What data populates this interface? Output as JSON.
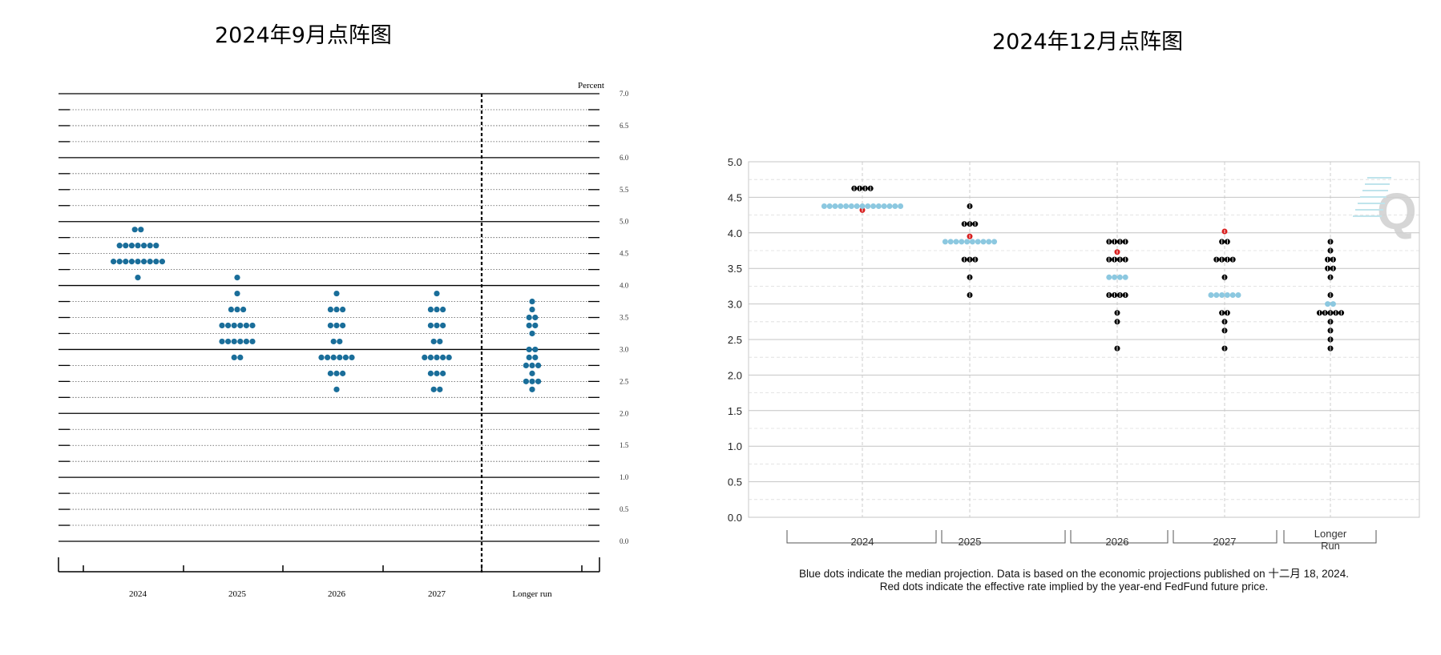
{
  "sep_title": "2024年9月点阵图",
  "dec_title": "2024年12月点阵图",
  "notes": {
    "line1": "Blue dots indicate the median projection. Data is based on the economic projections published on 十二月 18, 2024.",
    "line2": "Red dots indicate the effective rate implied by the year-end FedFund future price."
  },
  "colors": {
    "sep_dot": "#1a6e9a",
    "dec_dot": "#000000",
    "dec_median": "#8cc8e0",
    "dec_future": "#d81e1e"
  },
  "chart_data": [
    {
      "type": "scatter",
      "name": "September 2024 dot plot",
      "ylabel": "Percent",
      "ylim": [
        0,
        7
      ],
      "yticks": [
        "7.0",
        "6.5",
        "6.0",
        "5.5",
        "5.0",
        "4.5",
        "4.0",
        "3.5",
        "3.0",
        "2.5",
        "2.0",
        "1.5",
        "1.0",
        "0.5",
        "0.0"
      ],
      "categories": [
        "2024",
        "2025",
        "2026",
        "2027",
        "Longer run"
      ],
      "grid": true,
      "columns": [
        {
          "category": "2024",
          "dots": [
            {
              "y": 4.875,
              "n": 2
            },
            {
              "y": 4.625,
              "n": 7
            },
            {
              "y": 4.375,
              "n": 9
            },
            {
              "y": 4.125,
              "n": 1
            }
          ]
        },
        {
          "category": "2025",
          "dots": [
            {
              "y": 4.125,
              "n": 1
            },
            {
              "y": 3.875,
              "n": 1
            },
            {
              "y": 3.625,
              "n": 3
            },
            {
              "y": 3.375,
              "n": 6
            },
            {
              "y": 3.125,
              "n": 6
            },
            {
              "y": 2.875,
              "n": 2
            }
          ]
        },
        {
          "category": "2026",
          "dots": [
            {
              "y": 3.875,
              "n": 1
            },
            {
              "y": 3.625,
              "n": 3
            },
            {
              "y": 3.375,
              "n": 3
            },
            {
              "y": 3.125,
              "n": 2
            },
            {
              "y": 2.875,
              "n": 6
            },
            {
              "y": 2.625,
              "n": 3
            },
            {
              "y": 2.375,
              "n": 1
            }
          ]
        },
        {
          "category": "2027",
          "dots": [
            {
              "y": 3.875,
              "n": 1
            },
            {
              "y": 3.625,
              "n": 3
            },
            {
              "y": 3.375,
              "n": 3
            },
            {
              "y": 3.125,
              "n": 2
            },
            {
              "y": 2.875,
              "n": 5
            },
            {
              "y": 2.625,
              "n": 3
            },
            {
              "y": 2.375,
              "n": 2
            }
          ]
        },
        {
          "category": "Longer run",
          "dots": [
            {
              "y": 3.75,
              "n": 1
            },
            {
              "y": 3.625,
              "n": 1
            },
            {
              "y": 3.5,
              "n": 2
            },
            {
              "y": 3.375,
              "n": 2
            },
            {
              "y": 3.25,
              "n": 1
            },
            {
              "y": 3.0,
              "n": 2
            },
            {
              "y": 2.875,
              "n": 2
            },
            {
              "y": 2.75,
              "n": 3
            },
            {
              "y": 2.625,
              "n": 1
            },
            {
              "y": 2.5,
              "n": 3
            },
            {
              "y": 2.375,
              "n": 1
            }
          ]
        }
      ]
    },
    {
      "type": "scatter",
      "name": "December 2024 dot plot",
      "ylim": [
        0,
        5
      ],
      "yticks": [
        "5.0",
        "4.5",
        "4.0",
        "3.5",
        "3.0",
        "2.5",
        "2.0",
        "1.5",
        "1.0",
        "0.5",
        "0.0"
      ],
      "categories": [
        "2024",
        "2025",
        "2026",
        "2027",
        "Longer Run"
      ],
      "grid": true,
      "columns": [
        {
          "category": "2024",
          "dots": [
            {
              "y": 4.625,
              "n": 4
            }
          ],
          "median": {
            "y": 4.375,
            "n": 15
          },
          "future": 4.32
        },
        {
          "category": "2025",
          "dots": [
            {
              "y": 4.375,
              "n": 1
            },
            {
              "y": 4.125,
              "n": 3
            },
            {
              "y": 3.625,
              "n": 3
            },
            {
              "y": 3.375,
              "n": 1
            },
            {
              "y": 3.125,
              "n": 1
            }
          ],
          "median": {
            "y": 3.875,
            "n": 10
          },
          "future": 3.95
        },
        {
          "category": "2026",
          "dots": [
            {
              "y": 3.875,
              "n": 4
            },
            {
              "y": 3.625,
              "n": 4
            },
            {
              "y": 3.125,
              "n": 4
            },
            {
              "y": 2.875,
              "n": 1
            },
            {
              "y": 2.75,
              "n": 1
            },
            {
              "y": 2.375,
              "n": 1
            }
          ],
          "median": {
            "y": 3.375,
            "n": 4
          },
          "future": 3.73
        },
        {
          "category": "2027",
          "dots": [
            {
              "y": 3.875,
              "n": 2
            },
            {
              "y": 3.625,
              "n": 4
            },
            {
              "y": 3.375,
              "n": 1
            },
            {
              "y": 2.875,
              "n": 2
            },
            {
              "y": 2.75,
              "n": 1
            },
            {
              "y": 2.625,
              "n": 1
            },
            {
              "y": 2.375,
              "n": 1
            }
          ],
          "median": {
            "y": 3.125,
            "n": 6
          },
          "future": 4.02
        },
        {
          "category": "Longer Run",
          "dots": [
            {
              "y": 3.875,
              "n": 1
            },
            {
              "y": 3.75,
              "n": 1
            },
            {
              "y": 3.625,
              "n": 2
            },
            {
              "y": 3.5,
              "n": 2
            },
            {
              "y": 3.375,
              "n": 1
            },
            {
              "y": 3.125,
              "n": 1
            },
            {
              "y": 2.875,
              "n": 5
            },
            {
              "y": 2.75,
              "n": 1
            },
            {
              "y": 2.625,
              "n": 1
            },
            {
              "y": 2.5,
              "n": 1
            },
            {
              "y": 2.375,
              "n": 1
            }
          ],
          "median": {
            "y": 3.0,
            "n": 2
          }
        }
      ]
    }
  ]
}
